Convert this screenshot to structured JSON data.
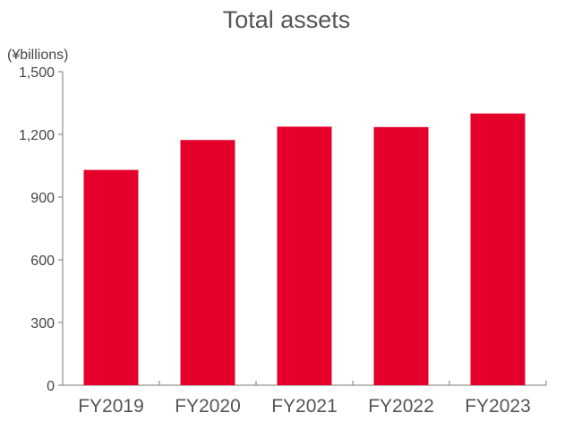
{
  "chart_data": {
    "type": "bar",
    "title": "Total assets",
    "unit_label": "(¥billions)",
    "categories": [
      "FY2019",
      "FY2020",
      "FY2021",
      "FY2022",
      "FY2023"
    ],
    "values": [
      1030,
      1173,
      1237,
      1235,
      1300
    ],
    "ylim": [
      0,
      1500
    ],
    "yticks": [
      0,
      300,
      600,
      900,
      1200,
      1500
    ],
    "ytick_labels": [
      "0",
      "300",
      "600",
      "900",
      "1,200",
      "1,500"
    ],
    "xlabel": "",
    "ylabel": "",
    "grid": false,
    "legend": "none",
    "bar_color": "#e4002b",
    "axis_color": "#777777"
  }
}
